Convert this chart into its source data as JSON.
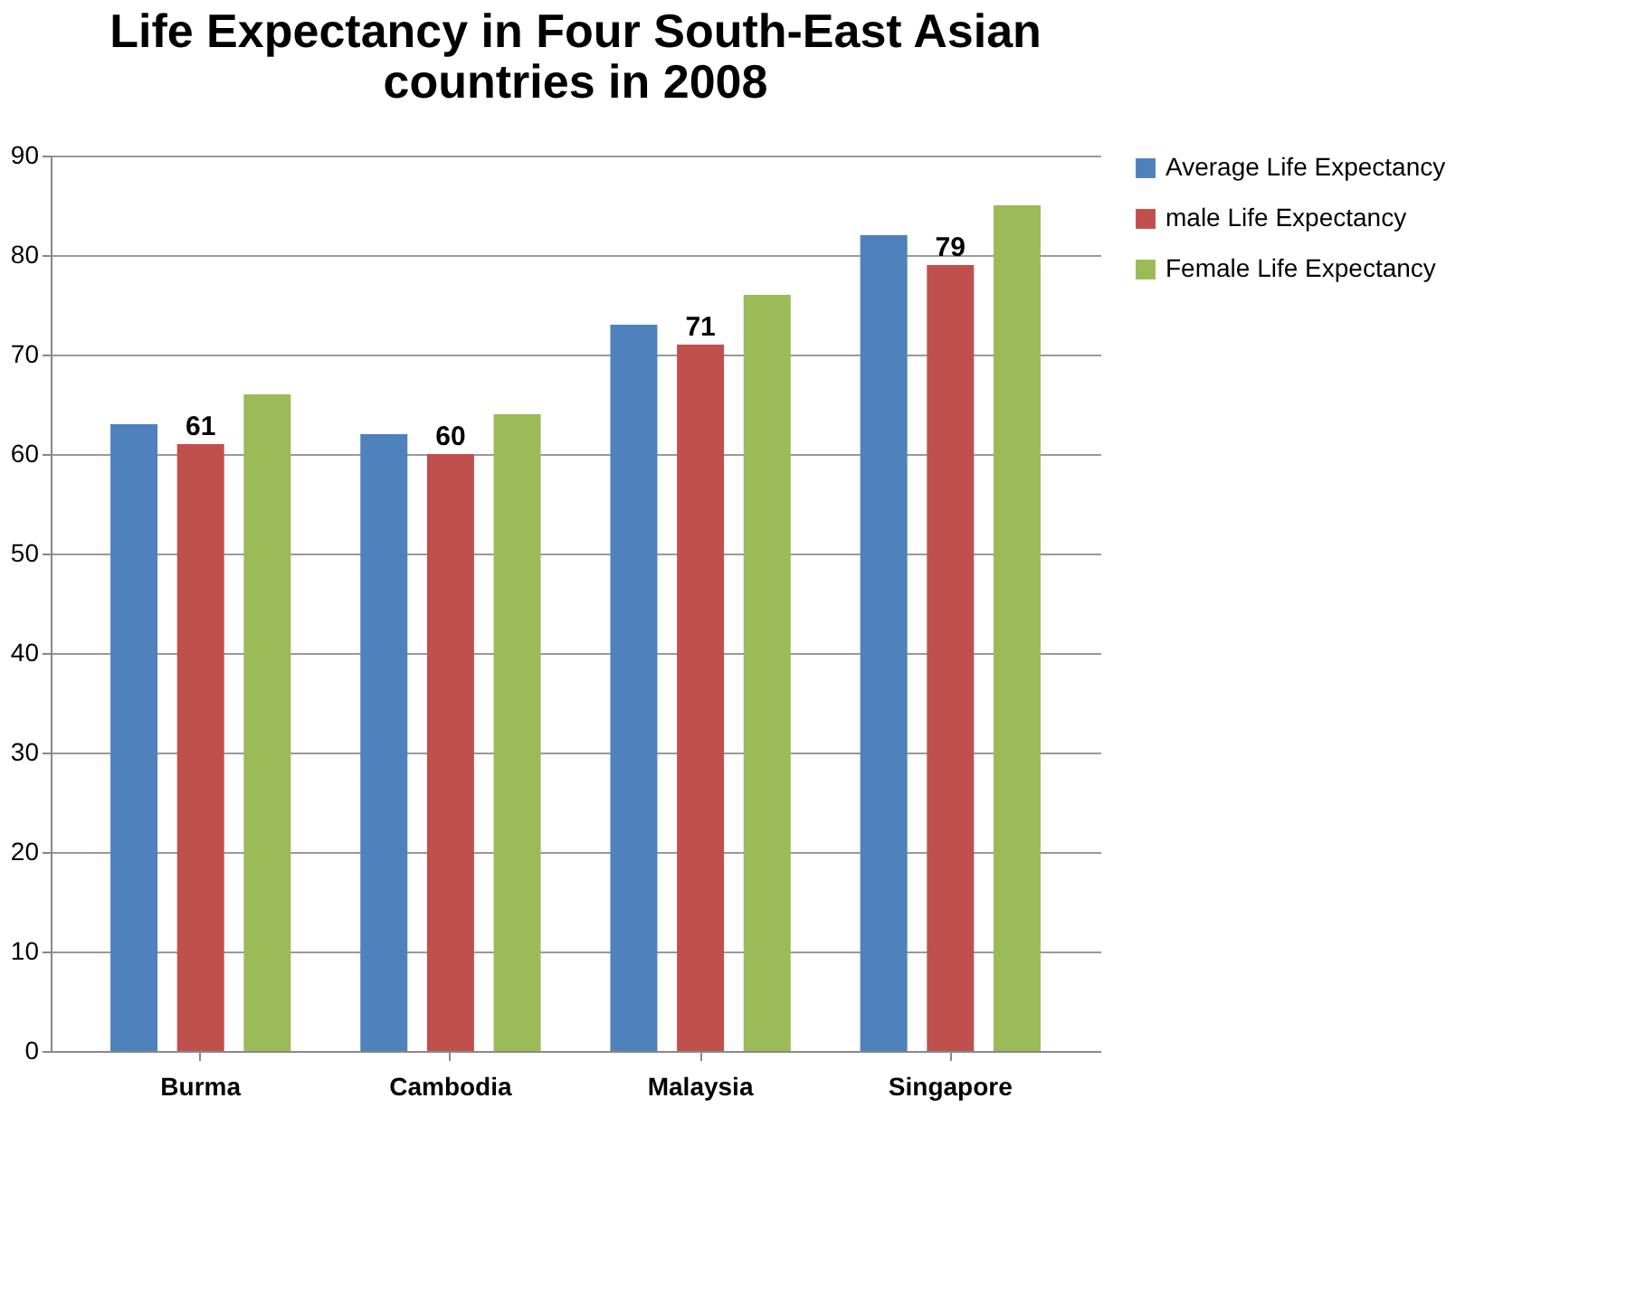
{
  "chart_data": {
    "type": "bar",
    "title": [
      "Life Expectancy in  Four South-East Asian",
      "countries in 2008"
    ],
    "categories": [
      "Burma",
      "Cambodia",
      "Malaysia",
      "Singapore"
    ],
    "series": [
      {
        "name": "Average Life Expectancy",
        "color": "#4f81bd",
        "values": [
          63,
          62,
          73,
          82
        ]
      },
      {
        "name": "male Life Expectancy",
        "color": "#c0504d",
        "values": [
          61,
          60,
          71,
          79
        ],
        "value_labels": [
          "61",
          "60",
          "71",
          "79"
        ]
      },
      {
        "name": "Female Life Expectancy",
        "color": "#9bbb59",
        "values": [
          66,
          64,
          76,
          85
        ]
      }
    ],
    "ylim": [
      0,
      90
    ],
    "yticks": [
      0,
      10,
      20,
      30,
      40,
      50,
      60,
      70,
      80,
      90
    ],
    "grid": "y",
    "legend": "right"
  }
}
